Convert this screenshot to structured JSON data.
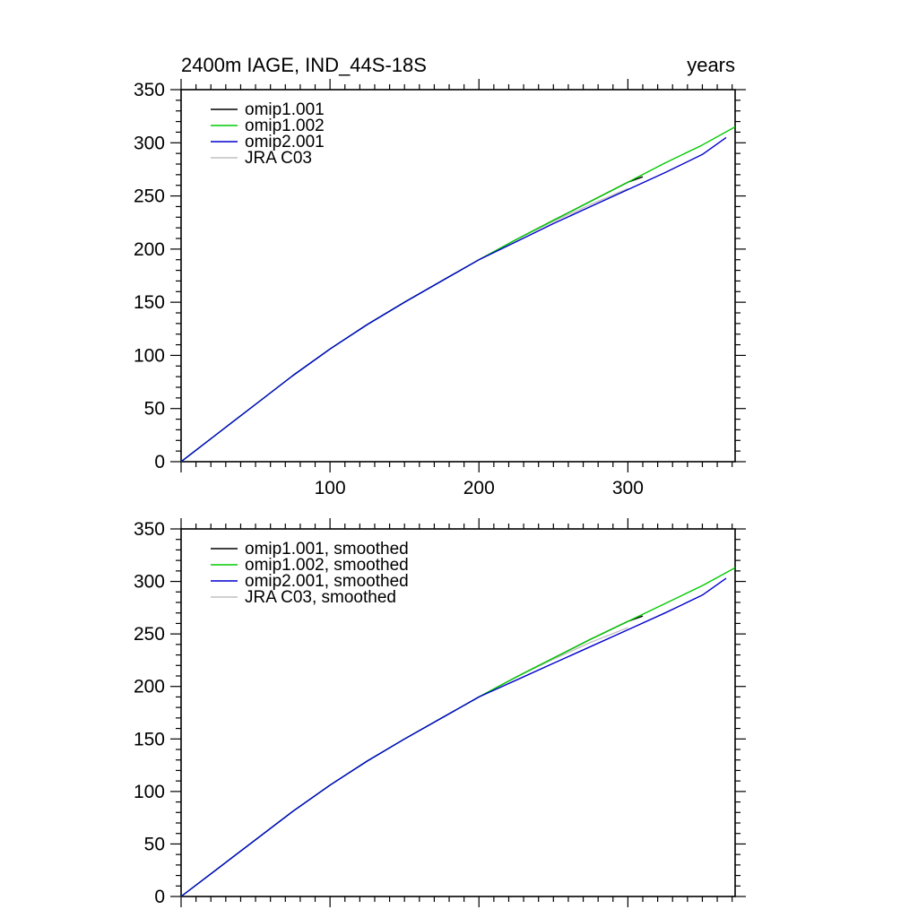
{
  "title": "2400m IAGE, IND_44S-18S",
  "units_label": "years",
  "colors": {
    "axis": "#000000",
    "omip1_001": "#000000",
    "omip1_002": "#00cc00",
    "omip2_001": "#0000cd",
    "jra_c03": "#c0c0c0"
  },
  "chart_data": [
    {
      "type": "line",
      "title": "2400m IAGE, IND_44S-18S",
      "right_label": "years",
      "xlim": [
        0,
        372
      ],
      "ylim": [
        0,
        350
      ],
      "x_major_step": 100,
      "x_minor_step": 10,
      "y_major_step": 50,
      "y_minor_step": 10,
      "x_tick_labels": [
        100,
        200,
        300
      ],
      "y_tick_labels": [
        0,
        50,
        100,
        150,
        200,
        250,
        300,
        350
      ],
      "show_x_labels": true,
      "legend_position": "top-left-inside",
      "grid": false,
      "draw_order": [
        0,
        3,
        1,
        2
      ],
      "series": [
        {
          "name": "omip1.001",
          "color": "#000000",
          "x": [
            0,
            25,
            50,
            75,
            100,
            125,
            150,
            175,
            200,
            225,
            250,
            275,
            300,
            310
          ],
          "y": [
            0,
            27,
            54,
            81,
            106,
            129,
            150,
            170,
            190,
            209,
            227,
            245,
            263,
            268
          ]
        },
        {
          "name": "omip1.002",
          "color": "#00cc00",
          "x": [
            0,
            25,
            50,
            75,
            100,
            125,
            150,
            175,
            200,
            225,
            250,
            275,
            300,
            325,
            350,
            372
          ],
          "y": [
            0,
            27,
            54,
            81,
            106,
            129,
            150,
            170,
            190,
            209,
            227,
            245,
            263,
            281,
            298,
            315
          ]
        },
        {
          "name": "omip2.001",
          "color": "#0000cd",
          "x": [
            0,
            25,
            50,
            75,
            100,
            125,
            150,
            175,
            200,
            225,
            250,
            275,
            300,
            325,
            350,
            366
          ],
          "y": [
            0,
            27,
            54,
            81,
            106,
            129,
            150,
            170,
            190,
            207,
            224,
            240,
            256,
            272,
            289,
            305
          ]
        },
        {
          "name": "JRA C03",
          "color": "#c0c0c0",
          "x": [
            0,
            25,
            50,
            75,
            100,
            125,
            150,
            175,
            200,
            225,
            250,
            275,
            300
          ],
          "y": [
            0,
            27,
            54,
            81,
            106,
            129,
            150,
            170,
            190,
            209,
            226,
            242,
            257
          ]
        }
      ]
    },
    {
      "type": "line",
      "title": "",
      "xlim": [
        0,
        372
      ],
      "ylim": [
        0,
        350
      ],
      "x_major_step": 100,
      "x_minor_step": 10,
      "y_major_step": 50,
      "y_minor_step": 10,
      "x_tick_labels": [
        100,
        200,
        300
      ],
      "y_tick_labels": [
        0,
        50,
        100,
        150,
        200,
        250,
        300,
        350
      ],
      "show_x_labels": false,
      "legend_position": "top-left-inside",
      "grid": false,
      "draw_order": [
        0,
        3,
        1,
        2
      ],
      "series": [
        {
          "name": "omip1.001, smoothed",
          "color": "#000000",
          "x": [
            0,
            25,
            50,
            75,
            100,
            125,
            150,
            175,
            200,
            225,
            250,
            275,
            300,
            310
          ],
          "y": [
            0,
            27,
            54,
            81,
            106,
            129,
            150,
            170,
            190,
            209,
            227,
            245,
            262,
            267
          ]
        },
        {
          "name": "omip1.002, smoothed",
          "color": "#00cc00",
          "x": [
            0,
            25,
            50,
            75,
            100,
            125,
            150,
            175,
            200,
            225,
            250,
            275,
            300,
            325,
            350,
            372
          ],
          "y": [
            0,
            27,
            54,
            81,
            106,
            129,
            150,
            170,
            190,
            209,
            227,
            245,
            262,
            279,
            296,
            313
          ]
        },
        {
          "name": "omip2.001, smoothed",
          "color": "#0000cd",
          "x": [
            0,
            25,
            50,
            75,
            100,
            125,
            150,
            175,
            200,
            225,
            250,
            275,
            300,
            325,
            350,
            366
          ],
          "y": [
            0,
            27,
            54,
            81,
            106,
            129,
            150,
            170,
            190,
            206,
            222,
            238,
            254,
            270,
            287,
            303
          ]
        },
        {
          "name": "JRA C03, smoothed",
          "color": "#c0c0c0",
          "x": [
            0,
            25,
            50,
            75,
            100,
            125,
            150,
            175,
            200,
            225,
            250,
            275,
            300
          ],
          "y": [
            0,
            27,
            54,
            81,
            106,
            129,
            150,
            170,
            190,
            209,
            226,
            242,
            256
          ]
        }
      ]
    }
  ]
}
